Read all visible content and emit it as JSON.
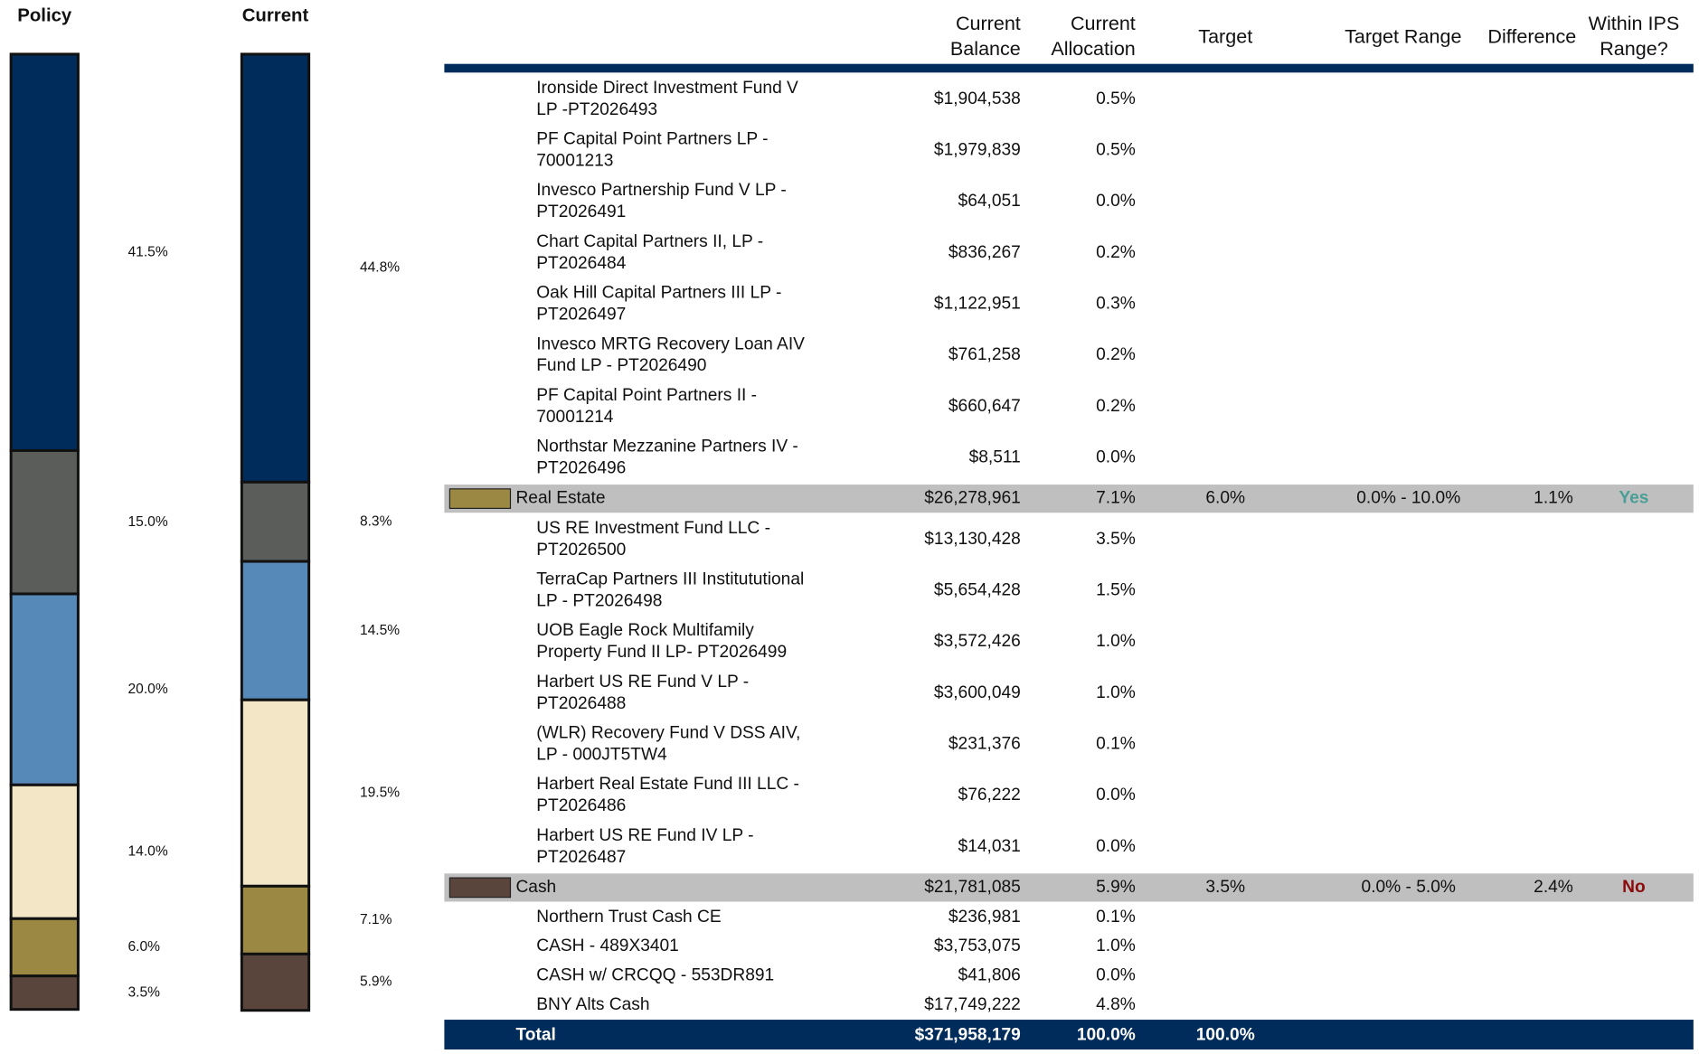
{
  "chart_data": {
    "type": "stacked_bar",
    "categories": [
      "Policy",
      "Current"
    ],
    "ylim": [
      0,
      100
    ],
    "series": [
      {
        "color": "#002c5c",
        "values": [
          41.5,
          44.8
        ],
        "value_labels": [
          "41.5%",
          "44.8%"
        ]
      },
      {
        "color": "#5a5d5a",
        "values": [
          15.0,
          8.3
        ],
        "value_labels": [
          "15.0%",
          "8.3%"
        ]
      },
      {
        "color": "#5689b8",
        "values": [
          20.0,
          14.5
        ],
        "value_labels": [
          "20.0%",
          "14.5%"
        ]
      },
      {
        "color": "#f2e6c6",
        "values": [
          14.0,
          19.5
        ],
        "value_labels": [
          "14.0%",
          "19.5%"
        ]
      },
      {
        "color": "#9a8843",
        "values": [
          6.0,
          7.1
        ],
        "value_labels": [
          "6.0%",
          "7.1%"
        ]
      },
      {
        "color": "#5a453c",
        "values": [
          3.5,
          5.9
        ],
        "value_labels": [
          "3.5%",
          "5.9%"
        ]
      }
    ]
  },
  "table": {
    "headers": [
      [
        "Current",
        "Balance"
      ],
      [
        "Current",
        "Allocation"
      ],
      [
        "Target"
      ],
      [
        "Target Range"
      ],
      [
        "Difference"
      ],
      [
        "Within IPS",
        "Range?"
      ]
    ],
    "rows": [
      {
        "name": [
          "Ironside Direct Investment Fund V",
          "LP -PT2026493"
        ],
        "balance": "$1,904,538",
        "allocation": "0.5%"
      },
      {
        "name": [
          "PF Capital Point Partners LP -",
          "70001213"
        ],
        "balance": "$1,979,839",
        "allocation": "0.5%"
      },
      {
        "name": [
          "Invesco Partnership Fund V LP -",
          "PT2026491"
        ],
        "balance": "$64,051",
        "allocation": "0.0%"
      },
      {
        "name": [
          "Chart Capital Partners II, LP -",
          "PT2026484"
        ],
        "balance": "$836,267",
        "allocation": "0.2%"
      },
      {
        "name": [
          "Oak Hill Capital Partners III LP -",
          "PT2026497"
        ],
        "balance": "$1,122,951",
        "allocation": "0.3%"
      },
      {
        "name": [
          "Invesco MRTG Recovery Loan AIV",
          "Fund  LP - PT2026490"
        ],
        "balance": "$761,258",
        "allocation": "0.2%"
      },
      {
        "name": [
          "PF Capital Point Partners II  -",
          "70001214"
        ],
        "balance": "$660,647",
        "allocation": "0.2%"
      },
      {
        "name": [
          "Northstar Mezzanine Partners IV -",
          "PT2026496"
        ],
        "balance": "$8,511",
        "allocation": "0.0%"
      },
      {
        "name": [
          "Real Estate"
        ],
        "color": "#9a8843",
        "balance": "$26,278,961",
        "allocation": "7.1%",
        "target": "6.0%",
        "range": "0.0% - 10.0%",
        "difference": "1.1%",
        "within": "Yes",
        "within_color": "#4a9f96"
      },
      {
        "name": [
          "US RE Investment Fund LLC -",
          "PT2026500"
        ],
        "balance": "$13,130,428",
        "allocation": "3.5%"
      },
      {
        "name": [
          "TerraCap Partners III Institututional",
          "LP - PT2026498"
        ],
        "balance": "$5,654,428",
        "allocation": "1.5%"
      },
      {
        "name": [
          "UOB Eagle Rock Multifamily",
          "Property Fund II LP- PT2026499"
        ],
        "balance": "$3,572,426",
        "allocation": "1.0%"
      },
      {
        "name": [
          "Harbert US RE Fund V LP -",
          "PT2026488"
        ],
        "balance": "$3,600,049",
        "allocation": "1.0%"
      },
      {
        "name": [
          "(WLR) Recovery Fund V DSS AIV,",
          "LP - 000JT5TW4"
        ],
        "balance": "$231,376",
        "allocation": "0.1%"
      },
      {
        "name": [
          "Harbert Real Estate Fund III LLC -",
          "PT2026486"
        ],
        "balance": "$76,222",
        "allocation": "0.0%"
      },
      {
        "name": [
          "Harbert US RE Fund IV LP -",
          "PT2026487"
        ],
        "balance": "$14,031",
        "allocation": "0.0%"
      },
      {
        "name": [
          "Cash"
        ],
        "color": "#5a453c",
        "balance": "$21,781,085",
        "allocation": "5.9%",
        "target": "3.5%",
        "range": "0.0% - 5.0%",
        "difference": "2.4%",
        "within": "No",
        "within_color": "#8b0a0a"
      },
      {
        "name": [
          "Northern Trust Cash CE"
        ],
        "balance": "$236,981",
        "allocation": "0.1%"
      },
      {
        "name": [
          "CASH - 489X3401"
        ],
        "balance": "$3,753,075",
        "allocation": "1.0%"
      },
      {
        "name": [
          "CASH w/ CRCQQ - 553DR891"
        ],
        "balance": "$41,806",
        "allocation": "0.0%"
      },
      {
        "name": [
          "BNY Alts Cash"
        ],
        "balance": "$17,749,222",
        "allocation": "4.8%"
      }
    ],
    "total": {
      "name": [
        "Total"
      ],
      "balance": "$371,958,179",
      "allocation": "100.0%",
      "target": "100.0%"
    }
  }
}
